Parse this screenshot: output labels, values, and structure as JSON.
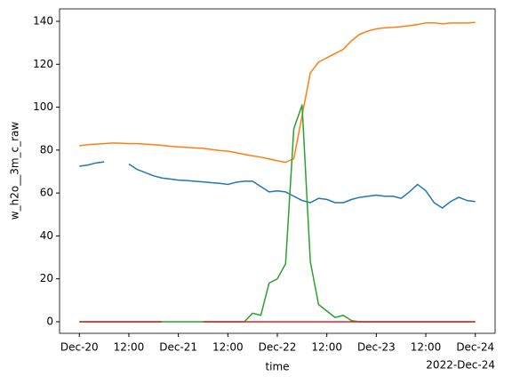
{
  "chart_data": {
    "type": "line",
    "x_label": "time",
    "y_label": "w_h2o__3m_c_raw",
    "x_offset_label": "2022-Dec-24",
    "x": [
      "2022-12-20T00:00",
      "2022-12-20T02:00",
      "2022-12-20T04:00",
      "2022-12-20T06:00",
      "2022-12-20T08:00",
      "2022-12-20T10:00",
      "2022-12-20T12:00",
      "2022-12-20T14:00",
      "2022-12-20T16:00",
      "2022-12-20T18:00",
      "2022-12-20T20:00",
      "2022-12-20T22:00",
      "2022-12-21T00:00",
      "2022-12-21T02:00",
      "2022-12-21T04:00",
      "2022-12-21T06:00",
      "2022-12-21T08:00",
      "2022-12-21T10:00",
      "2022-12-21T12:00",
      "2022-12-21T14:00",
      "2022-12-21T16:00",
      "2022-12-21T18:00",
      "2022-12-21T20:00",
      "2022-12-21T22:00",
      "2022-12-22T00:00",
      "2022-12-22T02:00",
      "2022-12-22T04:00",
      "2022-12-22T06:00",
      "2022-12-22T08:00",
      "2022-12-22T10:00",
      "2022-12-22T12:00",
      "2022-12-22T14:00",
      "2022-12-22T16:00",
      "2022-12-22T18:00",
      "2022-12-22T20:00",
      "2022-12-22T22:00",
      "2022-12-23T00:00",
      "2022-12-23T02:00",
      "2022-12-23T04:00",
      "2022-12-23T06:00",
      "2022-12-23T08:00",
      "2022-12-23T10:00",
      "2022-12-23T12:00",
      "2022-12-23T14:00",
      "2022-12-23T16:00",
      "2022-12-23T18:00",
      "2022-12-23T20:00",
      "2022-12-23T22:00",
      "2022-12-24T00:00"
    ],
    "series": [
      {
        "color": "#1f77b4",
        "values": [
          72.5,
          73,
          74,
          74.5,
          null,
          null,
          73.5,
          71,
          69.5,
          68,
          67,
          66.5,
          66,
          65.8,
          65.5,
          65.2,
          64.8,
          64.5,
          64,
          65,
          65.5,
          65.5,
          63,
          60.5,
          61,
          60.5,
          58.5,
          56.5,
          55.5,
          57.5,
          57,
          55.5,
          55.5,
          57,
          58,
          58.5,
          59,
          58.5,
          58.5,
          57.5,
          60.5,
          64,
          61,
          55.5,
          53,
          56,
          58,
          56.5,
          56
        ]
      },
      {
        "color": "#ff7f0e",
        "values": [
          82,
          82.5,
          82.8,
          83,
          83.3,
          83.2,
          83,
          83,
          82.8,
          82.5,
          82.2,
          81.8,
          81.5,
          81.3,
          81,
          80.8,
          80.3,
          79.8,
          79.5,
          78.8,
          78,
          77.3,
          76.7,
          75.9,
          75,
          74.3,
          76,
          96,
          116,
          121,
          123,
          125,
          127,
          131,
          134,
          135.5,
          136.5,
          137,
          137.2,
          137.5,
          138,
          138.5,
          139.3,
          139.3,
          138.8,
          139.2,
          139.2,
          139.2,
          139.5
        ]
      },
      {
        "color": "#2ca02c",
        "values": [
          0,
          0,
          0,
          0,
          0,
          0,
          0,
          0,
          0,
          0,
          0,
          0,
          0,
          0,
          0,
          0,
          0,
          0,
          0,
          0,
          0,
          4,
          3,
          18,
          20,
          27,
          90,
          101,
          28,
          8,
          5,
          2,
          3,
          0.5,
          0,
          0,
          0,
          0,
          0,
          0,
          0,
          0,
          0,
          0,
          0,
          0,
          0,
          0,
          0
        ]
      },
      {
        "color": "#d62728",
        "values": [
          0,
          0,
          0,
          0,
          0,
          0,
          0,
          0,
          0,
          0,
          0,
          null,
          null,
          null,
          null,
          0,
          0,
          0,
          0,
          0,
          0,
          0,
          0,
          0,
          0,
          0,
          0,
          0,
          0,
          0,
          0,
          0,
          0,
          0,
          0,
          0,
          0,
          0,
          0,
          0,
          0,
          0,
          0,
          0,
          0,
          0,
          0,
          0,
          0
        ]
      }
    ],
    "xlim": [
      "2022-12-19T19:12",
      "2022-12-24T04:48"
    ],
    "xticks": [
      {
        "value": "2022-12-20T00:00",
        "label": "Dec-20"
      },
      {
        "value": "2022-12-20T12:00",
        "label": "12:00"
      },
      {
        "value": "2022-12-21T00:00",
        "label": "Dec-21"
      },
      {
        "value": "2022-12-21T12:00",
        "label": "12:00"
      },
      {
        "value": "2022-12-22T00:00",
        "label": "Dec-22"
      },
      {
        "value": "2022-12-22T12:00",
        "label": "12:00"
      },
      {
        "value": "2022-12-23T00:00",
        "label": "Dec-23"
      },
      {
        "value": "2022-12-23T12:00",
        "label": "12:00"
      },
      {
        "value": "2022-12-24T00:00",
        "label": "Dec-24"
      }
    ],
    "ylim": [
      -5.4,
      145.8
    ],
    "yticks": [
      0,
      20,
      40,
      60,
      80,
      100,
      120,
      140
    ]
  }
}
